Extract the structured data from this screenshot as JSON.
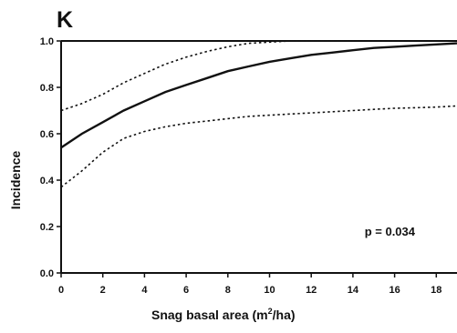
{
  "chart_data": {
    "type": "line",
    "panel_label": "K",
    "xlabel": "Snag basal area (m",
    "xlabel_superscript": "2",
    "xlabel_suffix": "/ha)",
    "ylabel": "Incidence",
    "xlim": [
      0,
      19
    ],
    "ylim": [
      0,
      1.0
    ],
    "x_ticks": [
      0,
      2,
      4,
      6,
      8,
      10,
      12,
      14,
      16,
      18
    ],
    "x_tick_labels": [
      "0",
      "2",
      "4",
      "6",
      "8",
      "10",
      "12",
      "14",
      "16",
      "18"
    ],
    "y_ticks": [
      0,
      0.2,
      0.4,
      0.6,
      0.8,
      1.0
    ],
    "y_tick_labels": [
      "0.0",
      "0.2",
      "0.4",
      "0.6",
      "0.8",
      "1.0"
    ],
    "annotation": "p = 0.034",
    "grid": false,
    "x": [
      0,
      1,
      2,
      3,
      4,
      5,
      6,
      7,
      8,
      9,
      10,
      11,
      12,
      13,
      14,
      15,
      16,
      17,
      18,
      19
    ],
    "series": [
      {
        "style": "solid",
        "values": [
          0.54,
          0.6,
          0.65,
          0.7,
          0.74,
          0.78,
          0.81,
          0.84,
          0.87,
          0.89,
          0.91,
          0.925,
          0.94,
          0.95,
          0.96,
          0.97,
          0.975,
          0.98,
          0.985,
          0.99
        ]
      },
      {
        "style": "dotted",
        "values": [
          0.7,
          0.73,
          0.77,
          0.82,
          0.86,
          0.9,
          0.93,
          0.955,
          0.975,
          0.99,
          0.995,
          1.0,
          1.0,
          1.0,
          1.0,
          1.0,
          1.0,
          1.0,
          1.0,
          1.0
        ]
      },
      {
        "style": "dotted",
        "values": [
          0.37,
          0.44,
          0.52,
          0.58,
          0.61,
          0.63,
          0.645,
          0.655,
          0.665,
          0.675,
          0.68,
          0.685,
          0.69,
          0.695,
          0.7,
          0.705,
          0.71,
          0.712,
          0.715,
          0.72
        ]
      }
    ]
  }
}
